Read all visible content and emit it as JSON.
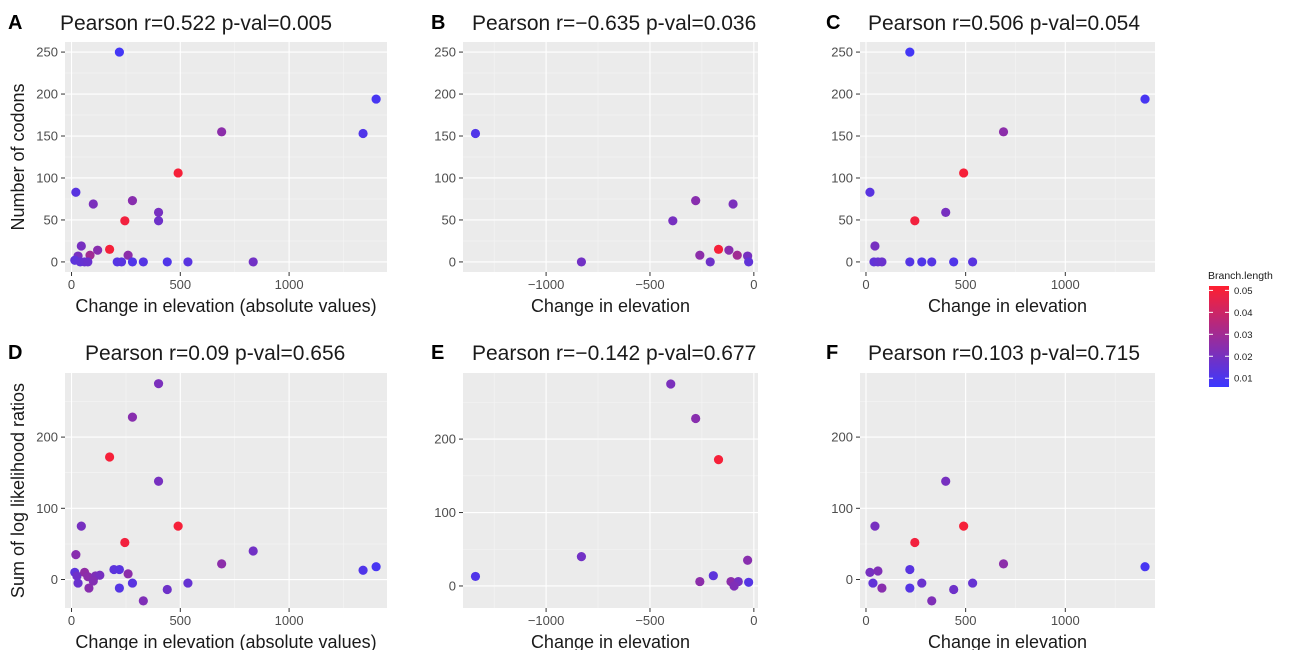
{
  "figure": {
    "legend": {
      "title": "Branch.length",
      "ticks": [
        "0.05",
        "0.04",
        "0.03",
        "0.02",
        "0.01"
      ],
      "tick_values": [
        0.05,
        0.04,
        0.03,
        0.02,
        0.01
      ],
      "range": [
        0.006,
        0.052
      ],
      "color_low": "#3b38ff",
      "color_high": "#ff1f30",
      "placement": "right"
    },
    "panel_background": "#ebebeb",
    "grid_color": "#ffffff"
  },
  "chart_data": [
    {
      "id": "A",
      "letter": "A",
      "type": "scatter",
      "title": "Pearson r=0.522 p-val=0.005",
      "xlabel": "Change in elevation (absolute values)",
      "ylabel": "Number of codons",
      "xlim": [
        -30,
        1450
      ],
      "ylim": [
        -12,
        262
      ],
      "xticks": [
        0,
        500,
        1000
      ],
      "xticklabels": [
        "0",
        "500",
        "1000"
      ],
      "yticks": [
        0,
        50,
        100,
        150,
        200,
        250
      ],
      "yticklabels": [
        "0",
        "50",
        "100",
        "150",
        "200",
        "250"
      ],
      "points": [
        {
          "x": 220,
          "y": 250,
          "c": 0.008
        },
        {
          "x": 1400,
          "y": 194,
          "c": 0.009
        },
        {
          "x": 1340,
          "y": 153,
          "c": 0.011
        },
        {
          "x": 690,
          "y": 155,
          "c": 0.025
        },
        {
          "x": 490,
          "y": 106,
          "c": 0.05
        },
        {
          "x": 20,
          "y": 83,
          "c": 0.013
        },
        {
          "x": 280,
          "y": 73,
          "c": 0.024
        },
        {
          "x": 100,
          "y": 69,
          "c": 0.021
        },
        {
          "x": 400,
          "y": 59,
          "c": 0.02
        },
        {
          "x": 400,
          "y": 49,
          "c": 0.018
        },
        {
          "x": 245,
          "y": 49,
          "c": 0.049
        },
        {
          "x": 45,
          "y": 19,
          "c": 0.02
        },
        {
          "x": 120,
          "y": 14,
          "c": 0.024
        },
        {
          "x": 175,
          "y": 15,
          "c": 0.05
        },
        {
          "x": 260,
          "y": 8,
          "c": 0.025
        },
        {
          "x": 85,
          "y": 8,
          "c": 0.03
        },
        {
          "x": 30,
          "y": 7,
          "c": 0.02
        },
        {
          "x": 15,
          "y": 2,
          "c": 0.014
        },
        {
          "x": 40,
          "y": 0,
          "c": 0.015
        },
        {
          "x": 60,
          "y": 0,
          "c": 0.016
        },
        {
          "x": 75,
          "y": 0,
          "c": 0.017
        },
        {
          "x": 210,
          "y": 0,
          "c": 0.012
        },
        {
          "x": 230,
          "y": 0,
          "c": 0.013
        },
        {
          "x": 280,
          "y": 0,
          "c": 0.011
        },
        {
          "x": 330,
          "y": 0,
          "c": 0.012
        },
        {
          "x": 440,
          "y": 0,
          "c": 0.011
        },
        {
          "x": 535,
          "y": 0,
          "c": 0.013
        },
        {
          "x": 835,
          "y": 0,
          "c": 0.019
        }
      ]
    },
    {
      "id": "B",
      "letter": "B",
      "type": "scatter",
      "title": "Pearson r=−0.635 p-val=0.036",
      "xlabel": "Change in elevation",
      "ylabel": "",
      "xlim": [
        -1400,
        20
      ],
      "ylim": [
        -12,
        262
      ],
      "xticks": [
        -1000,
        -500,
        0
      ],
      "xticklabels": [
        "−1000",
        "−500",
        "0"
      ],
      "yticks": [
        0,
        50,
        100,
        150,
        200,
        250
      ],
      "yticklabels": [
        "0",
        "50",
        "100",
        "150",
        "200",
        "250"
      ],
      "points": [
        {
          "x": -1340,
          "y": 153,
          "c": 0.011
        },
        {
          "x": -830,
          "y": 0,
          "c": 0.019
        },
        {
          "x": -390,
          "y": 49,
          "c": 0.02
        },
        {
          "x": -280,
          "y": 73,
          "c": 0.024
        },
        {
          "x": -260,
          "y": 8,
          "c": 0.025
        },
        {
          "x": -210,
          "y": 0,
          "c": 0.018
        },
        {
          "x": -170,
          "y": 15,
          "c": 0.05
        },
        {
          "x": -120,
          "y": 14,
          "c": 0.024
        },
        {
          "x": -100,
          "y": 69,
          "c": 0.021
        },
        {
          "x": -80,
          "y": 8,
          "c": 0.03
        },
        {
          "x": -30,
          "y": 7,
          "c": 0.02
        },
        {
          "x": -25,
          "y": 0,
          "c": 0.015
        }
      ]
    },
    {
      "id": "C",
      "letter": "C",
      "type": "scatter",
      "title": "Pearson r=0.506 p-val=0.054",
      "xlabel": "Change in elevation",
      "ylabel": "",
      "xlim": [
        -30,
        1450
      ],
      "ylim": [
        -12,
        262
      ],
      "xticks": [
        0,
        500,
        1000
      ],
      "xticklabels": [
        "0",
        "500",
        "1000"
      ],
      "yticks": [
        0,
        50,
        100,
        150,
        200,
        250
      ],
      "yticklabels": [
        "0",
        "50",
        "100",
        "150",
        "200",
        "250"
      ],
      "points": [
        {
          "x": 220,
          "y": 250,
          "c": 0.008
        },
        {
          "x": 1400,
          "y": 194,
          "c": 0.009
        },
        {
          "x": 690,
          "y": 155,
          "c": 0.025
        },
        {
          "x": 490,
          "y": 106,
          "c": 0.05
        },
        {
          "x": 20,
          "y": 83,
          "c": 0.013
        },
        {
          "x": 400,
          "y": 59,
          "c": 0.02
        },
        {
          "x": 245,
          "y": 49,
          "c": 0.049
        },
        {
          "x": 45,
          "y": 19,
          "c": 0.02
        },
        {
          "x": 40,
          "y": 0,
          "c": 0.015
        },
        {
          "x": 60,
          "y": 0,
          "c": 0.016
        },
        {
          "x": 80,
          "y": 0,
          "c": 0.017
        },
        {
          "x": 220,
          "y": 0,
          "c": 0.012
        },
        {
          "x": 280,
          "y": 0,
          "c": 0.011
        },
        {
          "x": 330,
          "y": 0,
          "c": 0.012
        },
        {
          "x": 440,
          "y": 0,
          "c": 0.011
        },
        {
          "x": 535,
          "y": 0,
          "c": 0.013
        }
      ]
    },
    {
      "id": "D",
      "letter": "D",
      "type": "scatter",
      "title": "Pearson r=0.09 p-val=0.656",
      "xlabel": "Change in elevation (absolute values)",
      "ylabel": "Sum of log likelihood ratios",
      "xlim": [
        -30,
        1450
      ],
      "ylim": [
        -40,
        290
      ],
      "xticks": [
        0,
        500,
        1000
      ],
      "xticklabels": [
        "0",
        "500",
        "1000"
      ],
      "yticks": [
        0,
        100,
        200
      ],
      "yticklabels": [
        "0",
        "100",
        "200"
      ],
      "points": [
        {
          "x": 400,
          "y": 275,
          "c": 0.021
        },
        {
          "x": 280,
          "y": 228,
          "c": 0.024
        },
        {
          "x": 175,
          "y": 172,
          "c": 0.05
        },
        {
          "x": 400,
          "y": 138,
          "c": 0.02
        },
        {
          "x": 45,
          "y": 75,
          "c": 0.02
        },
        {
          "x": 490,
          "y": 75,
          "c": 0.05
        },
        {
          "x": 245,
          "y": 52,
          "c": 0.049
        },
        {
          "x": 835,
          "y": 40,
          "c": 0.019
        },
        {
          "x": 20,
          "y": 35,
          "c": 0.024
        },
        {
          "x": 690,
          "y": 22,
          "c": 0.025
        },
        {
          "x": 1400,
          "y": 18,
          "c": 0.009
        },
        {
          "x": 1340,
          "y": 13,
          "c": 0.011
        },
        {
          "x": 195,
          "y": 14,
          "c": 0.014
        },
        {
          "x": 220,
          "y": 14,
          "c": 0.013
        },
        {
          "x": 260,
          "y": 8,
          "c": 0.025
        },
        {
          "x": 15,
          "y": 10,
          "c": 0.014
        },
        {
          "x": 25,
          "y": 5,
          "c": 0.018
        },
        {
          "x": 60,
          "y": 10,
          "c": 0.026
        },
        {
          "x": 75,
          "y": 4,
          "c": 0.025
        },
        {
          "x": 110,
          "y": 5,
          "c": 0.022
        },
        {
          "x": 130,
          "y": 6,
          "c": 0.02
        },
        {
          "x": 100,
          "y": -2,
          "c": 0.023
        },
        {
          "x": 30,
          "y": -5,
          "c": 0.017
        },
        {
          "x": 280,
          "y": -5,
          "c": 0.013
        },
        {
          "x": 535,
          "y": -5,
          "c": 0.016
        },
        {
          "x": 80,
          "y": -12,
          "c": 0.024
        },
        {
          "x": 220,
          "y": -12,
          "c": 0.012
        },
        {
          "x": 440,
          "y": -14,
          "c": 0.018
        },
        {
          "x": 330,
          "y": -30,
          "c": 0.022
        }
      ]
    },
    {
      "id": "E",
      "letter": "E",
      "type": "scatter",
      "title": "Pearson r=−0.142 p-val=0.677",
      "xlabel": "Change in elevation",
      "ylabel": "",
      "xlim": [
        -1400,
        20
      ],
      "ylim": [
        -30,
        290
      ],
      "xticks": [
        -1000,
        -500,
        0
      ],
      "xticklabels": [
        "−1000",
        "−500",
        "0"
      ],
      "yticks": [
        0,
        100,
        200
      ],
      "yticklabels": [
        "0",
        "100",
        "200"
      ],
      "points": [
        {
          "x": -400,
          "y": 275,
          "c": 0.021
        },
        {
          "x": -280,
          "y": 228,
          "c": 0.024
        },
        {
          "x": -170,
          "y": 172,
          "c": 0.05
        },
        {
          "x": -830,
          "y": 40,
          "c": 0.019
        },
        {
          "x": -30,
          "y": 35,
          "c": 0.024
        },
        {
          "x": -1340,
          "y": 13,
          "c": 0.011
        },
        {
          "x": -195,
          "y": 14,
          "c": 0.014
        },
        {
          "x": -260,
          "y": 6,
          "c": 0.025
        },
        {
          "x": -110,
          "y": 6,
          "c": 0.025
        },
        {
          "x": -75,
          "y": 6,
          "c": 0.02
        },
        {
          "x": -25,
          "y": 5,
          "c": 0.012
        },
        {
          "x": -95,
          "y": 0,
          "c": 0.022
        }
      ]
    },
    {
      "id": "F",
      "letter": "F",
      "type": "scatter",
      "title": "Pearson r=0.103 p-val=0.715",
      "xlabel": "Change in elevation",
      "ylabel": "",
      "xlim": [
        -30,
        1450
      ],
      "ylim": [
        -40,
        290
      ],
      "xticks": [
        0,
        500,
        1000
      ],
      "xticklabels": [
        "0",
        "500",
        "1000"
      ],
      "yticks": [
        0,
        100,
        200
      ],
      "yticklabels": [
        "0",
        "100",
        "200"
      ],
      "points": [
        {
          "x": 400,
          "y": 138,
          "c": 0.02
        },
        {
          "x": 45,
          "y": 75,
          "c": 0.02
        },
        {
          "x": 490,
          "y": 75,
          "c": 0.05
        },
        {
          "x": 245,
          "y": 52,
          "c": 0.049
        },
        {
          "x": 690,
          "y": 22,
          "c": 0.025
        },
        {
          "x": 1400,
          "y": 18,
          "c": 0.009
        },
        {
          "x": 220,
          "y": 14,
          "c": 0.013
        },
        {
          "x": 20,
          "y": 10,
          "c": 0.02
        },
        {
          "x": 60,
          "y": 12,
          "c": 0.022
        },
        {
          "x": 35,
          "y": -5,
          "c": 0.015
        },
        {
          "x": 280,
          "y": -5,
          "c": 0.017
        },
        {
          "x": 535,
          "y": -5,
          "c": 0.016
        },
        {
          "x": 80,
          "y": -12,
          "c": 0.024
        },
        {
          "x": 220,
          "y": -12,
          "c": 0.012
        },
        {
          "x": 440,
          "y": -14,
          "c": 0.018
        },
        {
          "x": 330,
          "y": -30,
          "c": 0.022
        }
      ]
    }
  ]
}
